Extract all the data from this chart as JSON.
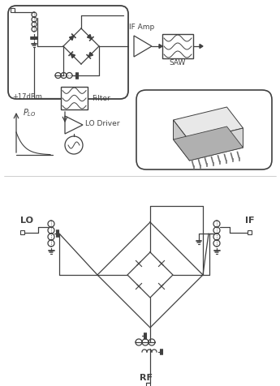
{
  "bg_color": "#ffffff",
  "lc": "#404040",
  "fig_width": 3.45,
  "fig_height": 4.77,
  "top": {
    "IF_Amp": "IF Amp",
    "SAW": "SAW",
    "Filter": "Filter",
    "LO_Driver": "LO Driver",
    "plus17": "+17dBm",
    "PLO": "$P_{LO}$"
  },
  "bottom": {
    "LO": "LO",
    "IF": "IF",
    "RF": "RF"
  }
}
